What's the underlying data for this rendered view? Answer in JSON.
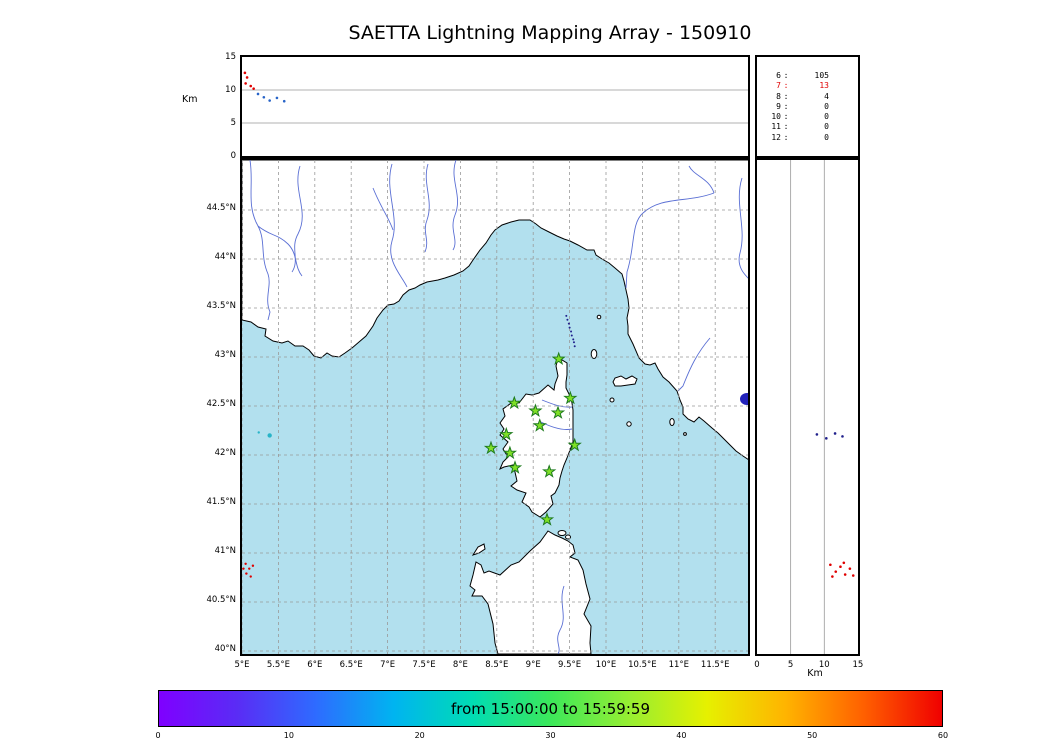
{
  "title": "SAETTA Lightning Mapping Array - 150910",
  "alt_panel": {
    "ylabel": "Km",
    "yticks": [
      15,
      10,
      5,
      0
    ],
    "grid": [
      5,
      10
    ]
  },
  "station_stats": {
    "rows": [
      {
        "id": "6",
        "count": "105",
        "highlight": false
      },
      {
        "id": "7",
        "count": "13",
        "highlight": true
      },
      {
        "id": "8",
        "count": "4",
        "highlight": false
      },
      {
        "id": "9",
        "count": "0",
        "highlight": false
      },
      {
        "id": "10",
        "count": "0",
        "highlight": false
      },
      {
        "id": "11",
        "count": "0",
        "highlight": false
      },
      {
        "id": "12",
        "count": "0",
        "highlight": false
      }
    ]
  },
  "map": {
    "lat_ticks": [
      {
        "label": "44.5°N",
        "lat": 44.5
      },
      {
        "label": "44°N",
        "lat": 44.0
      },
      {
        "label": "43.5°N",
        "lat": 43.5
      },
      {
        "label": "43°N",
        "lat": 43.0
      },
      {
        "label": "42.5°N",
        "lat": 42.5
      },
      {
        "label": "42°N",
        "lat": 42.0
      },
      {
        "label": "41.5°N",
        "lat": 41.5
      },
      {
        "label": "41°N",
        "lat": 41.0
      },
      {
        "label": "40.5°N",
        "lat": 40.5
      },
      {
        "label": "40°N",
        "lat": 40.0
      }
    ],
    "lon_ticks": [
      {
        "label": "5°E",
        "lon": 5.0
      },
      {
        "label": "5.5°E",
        "lon": 5.5
      },
      {
        "label": "6°E",
        "lon": 6.0
      },
      {
        "label": "6.5°E",
        "lon": 6.5
      },
      {
        "label": "7°E",
        "lon": 7.0
      },
      {
        "label": "7.5°E",
        "lon": 7.5
      },
      {
        "label": "8°E",
        "lon": 8.0
      },
      {
        "label": "8.5°E",
        "lon": 8.5
      },
      {
        "label": "9°E",
        "lon": 9.0
      },
      {
        "label": "9.5°E",
        "lon": 9.5
      },
      {
        "label": "10°E",
        "lon": 10.0
      },
      {
        "label": "10.5°E",
        "lon": 10.5
      },
      {
        "label": "11°E",
        "lon": 11.0
      },
      {
        "label": "11.5°E",
        "lon": 11.5
      }
    ]
  },
  "right_panel": {
    "xlabel": "Km",
    "xticks": [
      0,
      5,
      10,
      15
    ],
    "grid": [
      5,
      10
    ]
  },
  "colorbar": {
    "label": "from 15:00:00 to 15:59:59",
    "ticks": [
      0,
      10,
      20,
      30,
      40,
      50,
      60
    ],
    "gradient": [
      {
        "p": 0,
        "c": "#7f00ff"
      },
      {
        "p": 10,
        "c": "#5a2cf5"
      },
      {
        "p": 20,
        "c": "#2e6bff"
      },
      {
        "p": 30,
        "c": "#00b4f0"
      },
      {
        "p": 40,
        "c": "#00dcb4"
      },
      {
        "p": 50,
        "c": "#3ce85a"
      },
      {
        "p": 60,
        "c": "#96ee32"
      },
      {
        "p": 70,
        "c": "#e6f000"
      },
      {
        "p": 80,
        "c": "#ffb400"
      },
      {
        "p": 90,
        "c": "#ff6000"
      },
      {
        "p": 100,
        "c": "#f00000"
      }
    ]
  },
  "colors": {
    "sea": "#b2e0ee",
    "land": "#ffffff",
    "coast": "#000000",
    "river": "#5a6fd4",
    "grid": "#999999",
    "station_fill": "#7fe026",
    "station_edge": "#1e7a1e",
    "lake": "#2222bb",
    "red_point": "#e00000",
    "blue_point": "#2864c8",
    "cyan_point": "#28b4c8",
    "navy_point": "#20208c"
  },
  "chart_data": {
    "type": "scatter",
    "title": "SAETTA Lightning Mapping Array - 150910",
    "time_window": "from 15:00:00 to 15:59:59",
    "panels": {
      "alt_vs_lon": {
        "ylabel": "Km",
        "ylim": [
          0,
          15
        ],
        "xlim": [
          5,
          12
        ],
        "points": [
          {
            "lon": 5.04,
            "alt": 12.6,
            "c": "red"
          },
          {
            "lon": 5.07,
            "alt": 11.9,
            "c": "red"
          },
          {
            "lon": 5.05,
            "alt": 11.0,
            "c": "red"
          },
          {
            "lon": 5.12,
            "alt": 10.6,
            "c": "red"
          },
          {
            "lon": 5.16,
            "alt": 10.2,
            "c": "red"
          },
          {
            "lon": 5.22,
            "alt": 9.4,
            "c": "blue"
          },
          {
            "lon": 5.3,
            "alt": 8.9,
            "c": "blue"
          },
          {
            "lon": 5.38,
            "alt": 8.4,
            "c": "blue"
          },
          {
            "lon": 5.48,
            "alt": 8.8,
            "c": "blue"
          },
          {
            "lon": 5.58,
            "alt": 8.3,
            "c": "blue"
          }
        ]
      },
      "sources_per_station": {
        "categories": [
          "6",
          "7",
          "8",
          "9",
          "10",
          "11",
          "12"
        ],
        "values": [
          105,
          13,
          4,
          0,
          0,
          0,
          0
        ]
      },
      "map": {
        "xlim": [
          5,
          12
        ],
        "ylim": [
          39.95,
          45.03
        ],
        "grid": true,
        "stations_lonlat": [
          [
            9.35,
            42.98
          ],
          [
            8.74,
            42.53
          ],
          [
            9.03,
            42.45
          ],
          [
            9.34,
            42.43
          ],
          [
            9.51,
            42.58
          ],
          [
            9.09,
            42.3
          ],
          [
            8.63,
            42.21
          ],
          [
            8.42,
            42.07
          ],
          [
            9.57,
            42.1
          ],
          [
            8.68,
            42.02
          ],
          [
            8.75,
            41.87
          ],
          [
            9.22,
            41.83
          ],
          [
            9.19,
            41.34
          ]
        ],
        "points": [
          {
            "lon": 5.38,
            "lat": 42.2,
            "c": "cyan",
            "r": 2.2
          },
          {
            "lon": 5.23,
            "lat": 42.23,
            "c": "cyan",
            "r": 1.2
          },
          {
            "lon": 5.05,
            "lat": 40.89,
            "c": "red",
            "r": 1.2
          },
          {
            "lon": 5.1,
            "lat": 40.84,
            "c": "red",
            "r": 1.2
          },
          {
            "lon": 5.15,
            "lat": 40.87,
            "c": "red",
            "r": 1.2
          },
          {
            "lon": 5.06,
            "lat": 40.79,
            "c": "red",
            "r": 1.2
          },
          {
            "lon": 5.12,
            "lat": 40.76,
            "c": "red",
            "r": 1.2
          },
          {
            "lon": 5.02,
            "lat": 40.84,
            "c": "red",
            "r": 1.2
          }
        ],
        "flash_track": [
          [
            9.455,
            43.42
          ],
          [
            9.47,
            43.38
          ],
          [
            9.49,
            43.34
          ],
          [
            9.5,
            43.3
          ],
          [
            9.52,
            43.26
          ],
          [
            9.53,
            43.22
          ],
          [
            9.55,
            43.18
          ],
          [
            9.56,
            43.15
          ],
          [
            9.57,
            43.11
          ]
        ]
      },
      "alt_vs_lat": {
        "xlabel": "Km",
        "xlim": [
          0,
          15
        ],
        "points": [
          {
            "alt": 8.9,
            "lat": 42.21,
            "c": "navy"
          },
          {
            "alt": 10.3,
            "lat": 42.17,
            "c": "navy"
          },
          {
            "alt": 11.6,
            "lat": 42.22,
            "c": "navy"
          },
          {
            "alt": 12.7,
            "lat": 42.19,
            "c": "navy"
          },
          {
            "alt": 10.9,
            "lat": 40.88,
            "c": "red"
          },
          {
            "alt": 11.7,
            "lat": 40.81,
            "c": "red"
          },
          {
            "alt": 12.4,
            "lat": 40.86,
            "c": "red"
          },
          {
            "alt": 13.1,
            "lat": 40.78,
            "c": "red"
          },
          {
            "alt": 13.8,
            "lat": 40.84,
            "c": "red"
          },
          {
            "alt": 14.3,
            "lat": 40.77,
            "c": "red"
          },
          {
            "alt": 11.2,
            "lat": 40.76,
            "c": "red"
          },
          {
            "alt": 12.9,
            "lat": 40.9,
            "c": "red"
          }
        ]
      },
      "colorbar": {
        "label": "from 15:00:00 to 15:59:59",
        "range": [
          0,
          60
        ]
      }
    }
  }
}
